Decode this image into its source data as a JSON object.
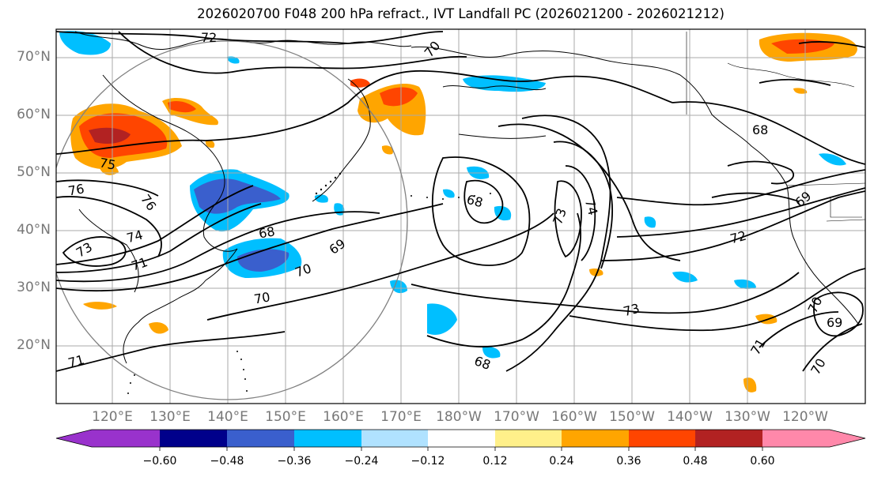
{
  "title": "2026020700 F048 200 hPa refract., IVT Landfall PC (2026021200 - 2026021212)",
  "lat_ticks": [
    "70°N",
    "60°N",
    "50°N",
    "40°N",
    "30°N",
    "20°N"
  ],
  "lon_ticks": [
    "120°E",
    "130°E",
    "140°E",
    "150°E",
    "160°E",
    "170°E",
    "180°W",
    "170°W",
    "160°W",
    "150°W",
    "140°W",
    "130°W",
    "120°W"
  ],
  "colorbar": {
    "labels": [
      "−0.60",
      "−0.48",
      "−0.36",
      "−0.24",
      "−0.12",
      "0.12",
      "0.24",
      "0.36",
      "0.48",
      "0.60"
    ],
    "colors": [
      "#9932cc",
      "#00008b",
      "#3a5fcd",
      "#00bfff",
      "#b0e2ff",
      "#ffffff",
      "#fff08a",
      "#ffa500",
      "#ff4500",
      "#b22222",
      "#ff88aa"
    ]
  },
  "contour_labels": [
    "72",
    "70",
    "68",
    "68",
    "75",
    "76",
    "76",
    "73",
    "74",
    "71",
    "68",
    "69",
    "70",
    "70",
    "68",
    "73",
    "74",
    "72",
    "73",
    "69",
    "70",
    "69",
    "71",
    "70",
    "71"
  ]
}
